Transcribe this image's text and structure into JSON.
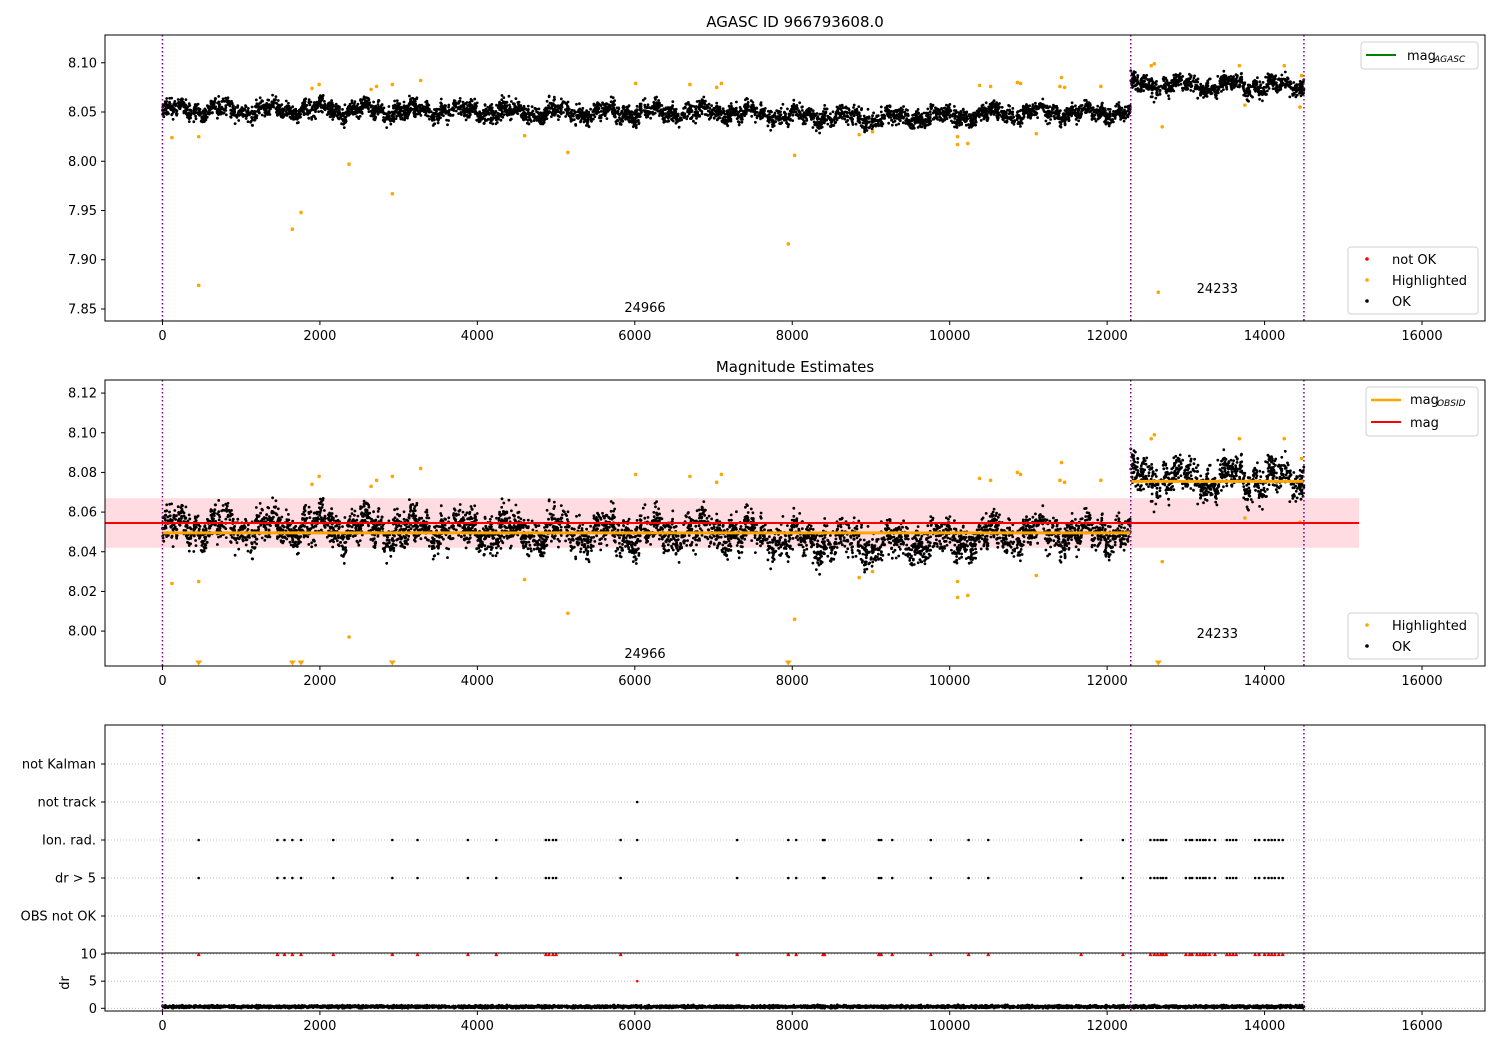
{
  "colors": {
    "ok": "#000000",
    "highlighted": "#ffa500",
    "not_ok": "#ff0000",
    "mag_agasc": "#008000",
    "mag_obsid": "#ffa500",
    "mag": "#ff0000",
    "band": "#ffc0c8",
    "obsid_line": "#800080",
    "grid": "#b0b0b0"
  },
  "chart_data": [
    {
      "type": "scatter",
      "title": "AGASC ID 966793608.0",
      "xlabel": "",
      "ylabel": "",
      "xlim": [
        -730,
        16800
      ],
      "ylim": [
        7.8378,
        8.1282
      ],
      "xticks": [
        0,
        2000,
        4000,
        6000,
        8000,
        10000,
        12000,
        14000,
        16000
      ],
      "yticks": [
        7.85,
        7.9,
        7.95,
        8.0,
        8.05,
        8.1
      ],
      "ytick_labels": [
        "7.85",
        "7.90",
        "7.95",
        "8.00",
        "8.05",
        "8.10"
      ],
      "legends": [
        {
          "position": "upper right",
          "items": [
            {
              "label": "mag",
              "sub": "AGASC",
              "kind": "line",
              "color": "mag_agasc"
            }
          ]
        },
        {
          "position": "lower right",
          "items": [
            {
              "label": "not OK",
              "kind": "dot",
              "color": "not_ok"
            },
            {
              "label": "Highlighted",
              "kind": "dot",
              "color": "highlighted"
            },
            {
              "label": "OK",
              "kind": "dot",
              "color": "ok"
            }
          ]
        }
      ],
      "obsid_boundaries": [
        0,
        12300,
        14500
      ],
      "obsid_labels": [
        {
          "text": "24966",
          "x": 6130,
          "y": 7.847
        },
        {
          "text": "24233",
          "x": 13400,
          "y": 7.866
        }
      ],
      "ok_trend": [
        {
          "x": 0,
          "mean": 8.052
        },
        {
          "x": 2000,
          "mean": 8.052
        },
        {
          "x": 4000,
          "mean": 8.051
        },
        {
          "x": 6000,
          "mean": 8.049
        },
        {
          "x": 7200,
          "mean": 8.051
        },
        {
          "x": 8000,
          "mean": 8.046
        },
        {
          "x": 9000,
          "mean": 8.044
        },
        {
          "x": 10000,
          "mean": 8.046
        },
        {
          "x": 11000,
          "mean": 8.05
        },
        {
          "x": 12300,
          "mean": 8.049
        },
        {
          "x": 12300.1,
          "mean": 8.078
        },
        {
          "x": 14500,
          "mean": 8.076
        }
      ],
      "ok_spread": 0.0085,
      "highlighted": [
        [
          120,
          8.024
        ],
        [
          460,
          8.025
        ],
        [
          460,
          7.874
        ],
        [
          1650,
          7.931
        ],
        [
          1760,
          7.948
        ],
        [
          1900,
          8.074
        ],
        [
          1990,
          8.078
        ],
        [
          2370,
          7.997
        ],
        [
          2650,
          8.073
        ],
        [
          2720,
          8.076
        ],
        [
          2920,
          7.967
        ],
        [
          2920,
          8.078
        ],
        [
          3280,
          8.082
        ],
        [
          4600,
          8.026
        ],
        [
          5150,
          8.009
        ],
        [
          6010,
          8.079
        ],
        [
          6700,
          8.078
        ],
        [
          7040,
          8.075
        ],
        [
          7100,
          8.079
        ],
        [
          7950,
          7.916
        ],
        [
          8030,
          8.006
        ],
        [
          8850,
          8.027
        ],
        [
          9020,
          8.03
        ],
        [
          10100,
          8.025
        ],
        [
          10100,
          8.017
        ],
        [
          10230,
          8.018
        ],
        [
          10380,
          8.077
        ],
        [
          10520,
          8.076
        ],
        [
          10860,
          8.08
        ],
        [
          10900,
          8.079
        ],
        [
          11100,
          8.028
        ],
        [
          11400,
          8.076
        ],
        [
          11420,
          8.085
        ],
        [
          11460,
          8.075
        ],
        [
          11920,
          8.076
        ],
        [
          12560,
          8.097
        ],
        [
          12600,
          8.099
        ],
        [
          12650,
          7.867
        ],
        [
          12700,
          8.035
        ],
        [
          13680,
          8.097
        ],
        [
          13750,
          8.057
        ],
        [
          14250,
          8.097
        ],
        [
          14450,
          8.055
        ],
        [
          14470,
          8.087
        ]
      ],
      "not_ok": []
    },
    {
      "type": "scatter",
      "title": "Magnitude Estimates",
      "xlabel": "",
      "ylabel": "",
      "xlim": [
        -730,
        16800
      ],
      "ylim": [
        7.9824,
        8.1266
      ],
      "xticks": [
        0,
        2000,
        4000,
        6000,
        8000,
        10000,
        12000,
        14000,
        16000
      ],
      "yticks": [
        8.0,
        8.02,
        8.04,
        8.06,
        8.08,
        8.1,
        8.12
      ],
      "ytick_labels": [
        "8.00",
        "8.02",
        "8.04",
        "8.06",
        "8.08",
        "8.10",
        "8.12"
      ],
      "legends": [
        {
          "position": "upper right",
          "items": [
            {
              "label": "mag",
              "sub": "OBSID",
              "kind": "line",
              "color": "mag_obsid"
            },
            {
              "label": "mag",
              "kind": "line",
              "color": "mag"
            }
          ]
        },
        {
          "position": "lower right",
          "items": [
            {
              "label": "Highlighted",
              "kind": "dot",
              "color": "highlighted"
            },
            {
              "label": "OK",
              "kind": "dot",
              "color": "ok"
            }
          ]
        }
      ],
      "obsid_boundaries": [
        0,
        12300,
        14500
      ],
      "obsid_labels": [
        {
          "text": "24966",
          "x": 6130,
          "y": 7.9865
        },
        {
          "text": "24233",
          "x": 13400,
          "y": 7.9965
        }
      ],
      "mag": {
        "value": 8.0545,
        "x_range": [
          -730,
          15200
        ],
        "band": [
          8.042,
          8.067
        ]
      },
      "mag_obsid": [
        {
          "x_range": [
            0,
            12300
          ],
          "value": 8.0495
        },
        {
          "x_range": [
            12300,
            14500
          ],
          "value": 8.0755
        }
      ],
      "highlighted_below_axis_x": [
        460,
        1650,
        1760,
        2920,
        7950,
        12650
      ],
      "mirror_of_panel": 0
    },
    {
      "type": "scatter",
      "title": "",
      "xlabel": "",
      "ylabel": "",
      "xlim": [
        -730,
        16800
      ],
      "categories": [
        "not Kalman",
        "not track",
        "Ion. rad.",
        "dr > 5",
        "OBS not OK"
      ],
      "flag_points": {
        "not track": [
          6030
        ],
        "Ion. rad.": [
          460,
          1460,
          1550,
          1650,
          1760,
          2170,
          2920,
          3240,
          3880,
          4240,
          4870,
          4910,
          4960,
          5000,
          5820,
          6030,
          7300,
          7950,
          8050,
          8390,
          8410,
          9100,
          9130,
          9270,
          9760,
          10240,
          10490,
          11670,
          12200,
          12550,
          12600,
          12640,
          12680,
          12710,
          12750,
          13000,
          13050,
          13080,
          13140,
          13180,
          13220,
          13250,
          13300,
          13370,
          13520,
          13560,
          13600,
          13640,
          13880,
          13930,
          14000,
          14050,
          14090,
          14130,
          14180,
          14230
        ],
        "dr > 5": [
          460,
          1460,
          1550,
          1650,
          1760,
          2170,
          2920,
          3240,
          3880,
          4240,
          4870,
          4910,
          4960,
          5000,
          5820,
          7300,
          7950,
          8050,
          8390,
          8410,
          9100,
          9130,
          9270,
          9760,
          10240,
          10490,
          11670,
          12200,
          12550,
          12600,
          12640,
          12680,
          12710,
          12750,
          13000,
          13050,
          13080,
          13140,
          13180,
          13220,
          13250,
          13300,
          13370,
          13520,
          13560,
          13600,
          13640,
          13880,
          13930,
          14000,
          14050,
          14090,
          14130,
          14180,
          14230
        ]
      },
      "obsid_boundaries": [
        0,
        12300,
        14500
      ]
    },
    {
      "type": "scatter",
      "title": "",
      "xlabel": "",
      "ylabel": "dr",
      "xlim": [
        -730,
        16800
      ],
      "ylim": [
        -0.5,
        10.2
      ],
      "xticks": [
        0,
        2000,
        4000,
        6000,
        8000,
        10000,
        12000,
        14000,
        16000
      ],
      "yticks": [
        0,
        5,
        10
      ],
      "ytick_labels": [
        "0",
        "5",
        "10"
      ],
      "clip_value": 10,
      "clipped_x": [
        460,
        1460,
        1550,
        1650,
        1760,
        2170,
        2920,
        3240,
        3880,
        4240,
        4870,
        4910,
        4960,
        5000,
        5820,
        7300,
        7950,
        8050,
        8390,
        8410,
        9100,
        9130,
        9270,
        9760,
        10240,
        10490,
        11670,
        12200,
        12550,
        12600,
        12640,
        12680,
        12710,
        12750,
        13000,
        13050,
        13080,
        13140,
        13180,
        13220,
        13250,
        13300,
        13370,
        13520,
        13560,
        13600,
        13640,
        13880,
        13930,
        14000,
        14050,
        14090,
        14130,
        14180,
        14230
      ],
      "not_ok_points": [
        [
          6030,
          5.0
        ]
      ],
      "typical_dr": 0.3,
      "obsid_boundaries": [
        0,
        12300,
        14500
      ]
    }
  ],
  "xtick_labels": [
    "0",
    "2000",
    "4000",
    "6000",
    "8000",
    "10000",
    "12000",
    "14000",
    "16000"
  ]
}
